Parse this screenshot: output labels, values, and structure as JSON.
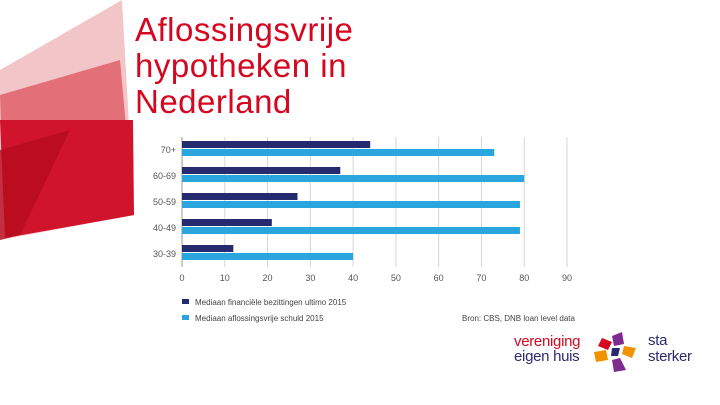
{
  "title_lines": [
    "Aflossingsvrije",
    "hypotheken in",
    "Nederland"
  ],
  "chart_data": {
    "type": "bar",
    "orientation": "horizontal",
    "title": "",
    "xlabel": "",
    "ylabel": "",
    "categories": [
      "70+",
      "60-69",
      "50-59",
      "40-49",
      "30-39"
    ],
    "series": [
      {
        "name": "Mediaan financiële bezittingen ultimo 2015",
        "color": "#262a6e",
        "values": [
          44,
          37,
          27,
          21,
          12
        ]
      },
      {
        "name": "Mediaan aflossingsvrije schuld 2015",
        "color": "#2aa6df",
        "values": [
          73,
          80,
          79,
          79,
          40
        ]
      }
    ],
    "xlim": [
      0,
      90
    ],
    "xticks": [
      "0",
      "10",
      "20",
      "30",
      "40",
      "50",
      "60",
      "70",
      "80",
      "90"
    ],
    "grid": true,
    "legend_position": "bottom-left",
    "source": "Bron: CBS, DNB loan level data"
  },
  "logo": {
    "line1": "vereniging",
    "line2": "eigen huis",
    "line3": "sta",
    "line4": "sterker",
    "red": "#d5061f",
    "navy": "#2b2a6e",
    "orange": "#f39200",
    "purple": "#7f2a8e"
  }
}
